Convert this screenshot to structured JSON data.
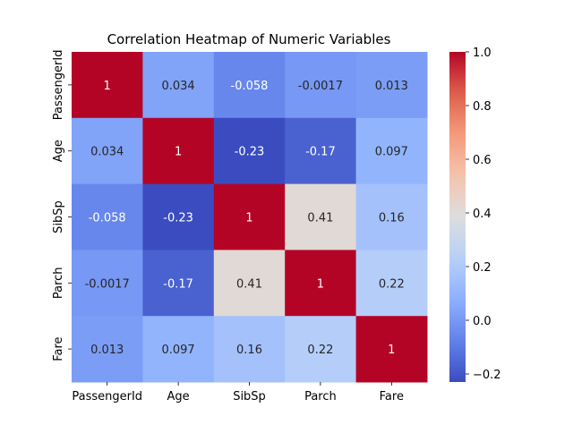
{
  "chart_data": {
    "type": "heatmap",
    "title": "Correlation Heatmap of Numeric Variables",
    "xlabel": "",
    "ylabel": "",
    "x_categories": [
      "PassengerId",
      "Age",
      "SibSp",
      "Parch",
      "Fare"
    ],
    "y_categories": [
      "PassengerId",
      "Age",
      "SibSp",
      "Parch",
      "Fare"
    ],
    "values": [
      [
        1,
        0.034,
        -0.058,
        -0.0017,
        0.013
      ],
      [
        0.034,
        1,
        -0.23,
        -0.17,
        0.097
      ],
      [
        -0.058,
        -0.23,
        1,
        0.41,
        0.16
      ],
      [
        -0.0017,
        -0.17,
        0.41,
        1,
        0.22
      ],
      [
        0.013,
        0.097,
        0.16,
        0.22,
        1
      ]
    ],
    "annotations": [
      [
        "1",
        "0.034",
        "-0.058",
        "-0.0017",
        "0.013"
      ],
      [
        "0.034",
        "1",
        "-0.23",
        "-0.17",
        "0.097"
      ],
      [
        "-0.058",
        "-0.23",
        "1",
        "0.41",
        "0.16"
      ],
      [
        "-0.0017",
        "-0.17",
        "0.41",
        "1",
        "0.22"
      ],
      [
        "0.013",
        "0.097",
        "0.16",
        "0.22",
        "1"
      ]
    ],
    "colormap": "coolwarm",
    "color_range": [
      -0.23,
      1.0
    ],
    "colorbar_ticks": [
      -0.2,
      0.0,
      0.2,
      0.4,
      0.6,
      0.8,
      1.0
    ],
    "colorbar_tick_labels": [
      "−0.2",
      "0.0",
      "0.2",
      "0.4",
      "0.6",
      "0.8",
      "1.0"
    ],
    "grid": false,
    "legend": "colorbar-right"
  }
}
